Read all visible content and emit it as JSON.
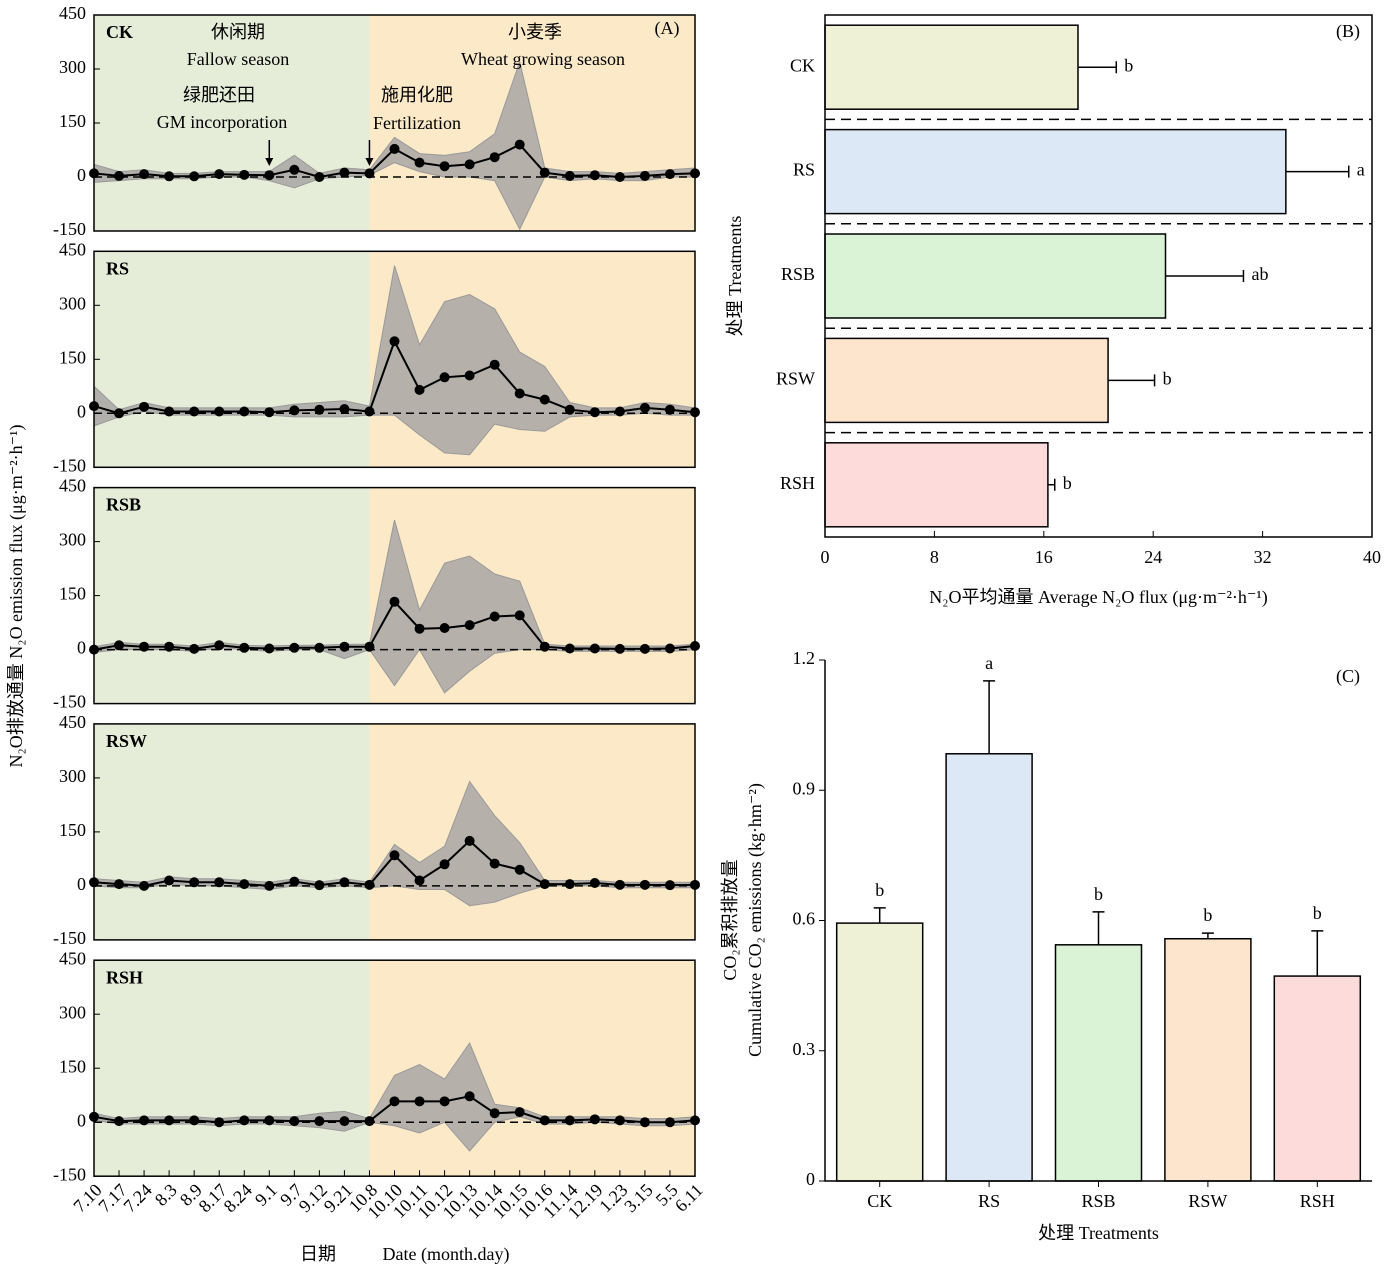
{
  "chart_data": [
    {
      "type": "line",
      "label": "CK",
      "ylim": [
        -150,
        450
      ],
      "yticks": [
        -150,
        0,
        150,
        300,
        450
      ],
      "color": "#000000",
      "band_color": "#a8a6a4",
      "ylabel": "N₂O排放通量 N₂O emission flux (μg·m⁻²·h⁻¹)",
      "annotations": [
        "休闲期",
        "Fallow season",
        "绿肥还田",
        "GM incorporation",
        "小麦季",
        "Wheat growing season",
        "施用化肥",
        "Fertilization",
        "(A)"
      ],
      "values": [
        10,
        3,
        8,
        2,
        2,
        8,
        6,
        5,
        20,
        0,
        12,
        10,
        78,
        40,
        30,
        35,
        55,
        90,
        12,
        3,
        5,
        0,
        3,
        8,
        10
      ],
      "upper": [
        35,
        15,
        20,
        10,
        10,
        15,
        15,
        15,
        60,
        10,
        25,
        20,
        110,
        65,
        60,
        70,
        120,
        320,
        25,
        15,
        15,
        10,
        15,
        20,
        25
      ],
      "lower": [
        -15,
        -10,
        -5,
        -5,
        -5,
        0,
        0,
        -10,
        -30,
        -5,
        0,
        5,
        40,
        15,
        0,
        0,
        -10,
        -145,
        0,
        -10,
        -5,
        -10,
        -10,
        0,
        0
      ]
    },
    {
      "type": "line",
      "label": "RS",
      "ylim": [
        -150,
        450
      ],
      "yticks": [
        -150,
        0,
        150,
        300,
        450
      ],
      "color": "#000000",
      "band_color": "#a8a6a4",
      "values": [
        20,
        0,
        18,
        5,
        5,
        5,
        5,
        3,
        8,
        10,
        12,
        5,
        200,
        65,
        100,
        105,
        135,
        55,
        38,
        10,
        3,
        5,
        15,
        10,
        3
      ],
      "upper": [
        75,
        10,
        30,
        15,
        15,
        15,
        15,
        15,
        25,
        30,
        35,
        20,
        410,
        190,
        310,
        330,
        290,
        170,
        130,
        30,
        15,
        15,
        30,
        25,
        15
      ],
      "lower": [
        -35,
        -10,
        5,
        -5,
        -5,
        -5,
        -5,
        -5,
        -10,
        -10,
        -10,
        -5,
        -5,
        -60,
        -110,
        -115,
        -30,
        -45,
        -50,
        -10,
        -5,
        -5,
        0,
        -5,
        -5
      ]
    },
    {
      "type": "line",
      "label": "RSB",
      "ylim": [
        -150,
        450
      ],
      "yticks": [
        -150,
        0,
        150,
        300,
        450
      ],
      "color": "#000000",
      "band_color": "#a8a6a4",
      "values": [
        0,
        12,
        8,
        8,
        2,
        12,
        5,
        3,
        5,
        5,
        8,
        8,
        133,
        58,
        60,
        68,
        92,
        95,
        8,
        3,
        3,
        2,
        2,
        3,
        10
      ],
      "upper": [
        8,
        20,
        15,
        15,
        10,
        20,
        12,
        10,
        12,
        12,
        15,
        15,
        360,
        110,
        240,
        260,
        210,
        190,
        15,
        10,
        10,
        10,
        10,
        10,
        15
      ],
      "lower": [
        -8,
        0,
        0,
        0,
        -5,
        5,
        0,
        -5,
        0,
        0,
        -25,
        0,
        -100,
        0,
        -120,
        -60,
        -10,
        0,
        0,
        -5,
        -5,
        -5,
        -5,
        -5,
        0
      ]
    },
    {
      "type": "line",
      "label": "RSW",
      "ylim": [
        -150,
        450
      ],
      "yticks": [
        -150,
        0,
        150,
        300,
        450
      ],
      "color": "#000000",
      "band_color": "#a8a6a4",
      "values": [
        10,
        5,
        0,
        15,
        10,
        10,
        5,
        0,
        12,
        2,
        10,
        3,
        85,
        15,
        60,
        125,
        62,
        45,
        5,
        5,
        8,
        3,
        3,
        2,
        3
      ],
      "upper": [
        20,
        15,
        10,
        25,
        20,
        20,
        15,
        10,
        20,
        10,
        20,
        10,
        115,
        65,
        110,
        290,
        195,
        120,
        15,
        15,
        15,
        10,
        10,
        10,
        10
      ],
      "lower": [
        0,
        -5,
        -5,
        5,
        0,
        0,
        -5,
        -10,
        0,
        -5,
        0,
        -5,
        0,
        -10,
        -10,
        -55,
        -45,
        -20,
        0,
        0,
        0,
        -5,
        -5,
        -5,
        -5
      ]
    },
    {
      "type": "line",
      "label": "RSH",
      "ylim": [
        -150,
        450
      ],
      "yticks": [
        -150,
        0,
        150,
        300,
        450
      ],
      "color": "#000000",
      "band_color": "#a8a6a4",
      "categories": [
        "7.10",
        "7.17",
        "7.24",
        "8.3",
        "8.9",
        "8.17",
        "8.24",
        "9.1",
        "9.7",
        "9.12",
        "9.21",
        "10.8",
        "10.10",
        "10.11",
        "10.12",
        "10.13",
        "10.14",
        "10.15",
        "10.16",
        "11.14",
        "12.19",
        "1.23",
        "3.15",
        "5.5",
        "6.11"
      ],
      "xlabel": [
        "日期",
        "Date (month.day)"
      ],
      "values": [
        15,
        3,
        5,
        5,
        5,
        0,
        5,
        5,
        3,
        3,
        3,
        3,
        58,
        58,
        58,
        72,
        25,
        28,
        5,
        5,
        8,
        5,
        0,
        0,
        5
      ],
      "upper": [
        25,
        10,
        15,
        15,
        15,
        10,
        15,
        15,
        15,
        25,
        30,
        10,
        130,
        160,
        120,
        220,
        50,
        40,
        15,
        15,
        15,
        15,
        10,
        10,
        15
      ],
      "lower": [
        5,
        -5,
        -5,
        -5,
        -5,
        -10,
        -5,
        -5,
        -10,
        -15,
        -25,
        0,
        -10,
        -30,
        0,
        -80,
        0,
        15,
        -5,
        -5,
        0,
        -5,
        -10,
        -10,
        -5
      ]
    },
    {
      "type": "hbar",
      "panel_label": "(B)",
      "xlabel": "N₂O平均通量 Average N₂O flux (μg·m⁻²·h⁻¹)",
      "ylabel": "处理 Treatments",
      "categories": [
        "CK",
        "RS",
        "RSB",
        "RSW",
        "RSH"
      ],
      "values": [
        18.5,
        33.7,
        24.9,
        20.7,
        16.3
      ],
      "errors": [
        2.8,
        4.6,
        5.7,
        3.4,
        0.5
      ],
      "letters": [
        "b",
        "a",
        "ab",
        "b",
        "b"
      ],
      "colors": [
        "#eff1d7",
        "#dde8f7",
        "#daf3d7",
        "#fde4cd",
        "#fddbdb"
      ],
      "xlim": [
        0,
        40
      ],
      "xticks": [
        0,
        8,
        16,
        24,
        32,
        40
      ]
    },
    {
      "type": "bar",
      "panel_label": "(C)",
      "xlabel": "处理 Treatments",
      "ylabel": [
        "CO₂累积排放量",
        "Cumulative CO₂ emissions (kg·hm⁻²)"
      ],
      "categories": [
        "CK",
        "RS",
        "RSB",
        "RSW",
        "RSH"
      ],
      "values": [
        0.594,
        0.984,
        0.544,
        0.558,
        0.472
      ],
      "errors": [
        0.035,
        0.168,
        0.076,
        0.013,
        0.104
      ],
      "letters": [
        "b",
        "a",
        "b",
        "b",
        "b"
      ],
      "colors": [
        "#eff1d7",
        "#dde8f7",
        "#daf3d7",
        "#fde4cd",
        "#fddbdb"
      ],
      "ylim": [
        0,
        1.2
      ],
      "yticks": [
        0,
        0.3,
        0.6,
        0.9,
        1.2
      ]
    }
  ]
}
